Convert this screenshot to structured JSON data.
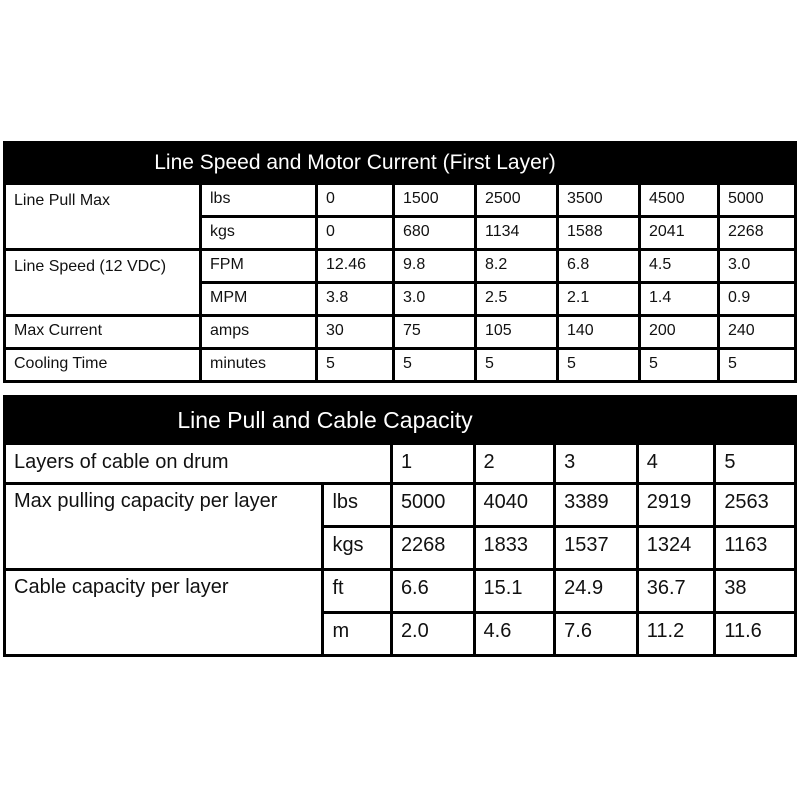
{
  "table1": {
    "title": "Line Speed and Motor Current (First Layer)",
    "rows": [
      {
        "label": "Line Pull Max",
        "unit": "lbs",
        "values": [
          "0",
          "1500",
          "2500",
          "3500",
          "4500",
          "5000"
        ]
      },
      {
        "label": "",
        "unit": "kgs",
        "values": [
          "0",
          "680",
          "1134",
          "1588",
          "2041",
          "2268"
        ]
      },
      {
        "label": "Line Speed (12 VDC)",
        "unit": "FPM",
        "values": [
          "12.46",
          "9.8",
          "8.2",
          "6.8",
          "4.5",
          "3.0"
        ]
      },
      {
        "label": "",
        "unit": "MPM",
        "values": [
          "3.8",
          "3.0",
          "2.5",
          "2.1",
          "1.4",
          "0.9"
        ]
      },
      {
        "label": "Max Current",
        "unit": "amps",
        "values": [
          "30",
          "75",
          "105",
          "140",
          "200",
          "240"
        ]
      },
      {
        "label": "Cooling Time",
        "unit": "minutes",
        "values": [
          "5",
          "5",
          "5",
          "5",
          "5",
          "5"
        ]
      }
    ]
  },
  "table2": {
    "title": "Line Pull and Cable Capacity",
    "header_label": "Layers of cable on drum",
    "layers": [
      "1",
      "2",
      "3",
      "4",
      "5"
    ],
    "rows": [
      {
        "label": "Max pulling capacity per layer",
        "unit": "lbs",
        "values": [
          "5000",
          "4040",
          "3389",
          "2919",
          "2563"
        ]
      },
      {
        "label": "",
        "unit": "kgs",
        "values": [
          "2268",
          "1833",
          "1537",
          "1324",
          "1163"
        ]
      },
      {
        "label": "Cable capacity per layer",
        "unit": "ft",
        "values": [
          "6.6",
          "15.1",
          "24.9",
          "36.7",
          "38"
        ]
      },
      {
        "label": "",
        "unit": "m",
        "values": [
          "2.0",
          "4.6",
          "7.6",
          "11.2",
          "11.6"
        ]
      }
    ]
  }
}
